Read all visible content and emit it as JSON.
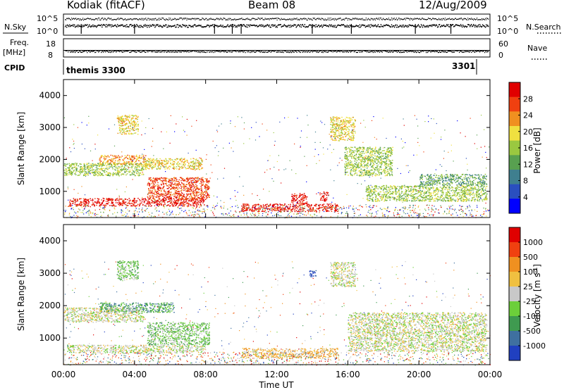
{
  "chart_data": {
    "type": "heatmap",
    "title": "Kodiak (fitACF)",
    "beam": "Beam 08",
    "date": "12/Aug/2009",
    "status_panels": {
      "left_labels": [
        "N.Sky",
        "Freq.",
        "[MHz]",
        "CPID"
      ],
      "right_labels": [
        "N.Search",
        "Nave"
      ],
      "noise_ticks_left": [
        "10^5",
        "10^0"
      ],
      "noise_ticks_right": [
        "10^5",
        "10^0"
      ],
      "freq_ticks": [
        "18",
        "8"
      ],
      "nave_ticks": [
        "60",
        "0"
      ],
      "cpid_labels": [
        "themis 3300",
        "3301"
      ]
    },
    "x_axis": {
      "label": "Time UT",
      "ticks": [
        "00:00",
        "04:00",
        "08:00",
        "12:00",
        "16:00",
        "20:00",
        "00:00"
      ],
      "range_hours": [
        0,
        24
      ]
    },
    "y_axis": {
      "label": "Slant Range [km]",
      "ticks": [
        "1000",
        "2000",
        "3000",
        "4000"
      ],
      "range_km": [
        180,
        4500
      ]
    },
    "panels": [
      {
        "name": "power",
        "colorbar_label": "Power [dB]",
        "colorbar_ticks": [
          "28",
          "24",
          "20",
          "16",
          "12",
          "8",
          "4"
        ],
        "colors": [
          "#0000ff",
          "#2a4fbf",
          "#3f7f8f",
          "#58a050",
          "#9ac840",
          "#f0e040",
          "#f09020",
          "#f04010",
          "#e00000"
        ],
        "blobs": [
          {
            "t0": 0.3,
            "t1": 7.9,
            "r0": 550,
            "r1": 800,
            "level": 8
          },
          {
            "t0": 4.7,
            "t1": 8.2,
            "r0": 750,
            "r1": 1450,
            "level": 7
          },
          {
            "t0": 2.0,
            "t1": 4.6,
            "r0": 1850,
            "r1": 2150,
            "level": 6
          },
          {
            "t0": 4.5,
            "t1": 7.8,
            "r0": 1700,
            "r1": 2050,
            "level": 5
          },
          {
            "t0": 0.0,
            "t1": 4.5,
            "r0": 1500,
            "r1": 1900,
            "level": 4
          },
          {
            "t0": 3.0,
            "t1": 4.2,
            "r0": 2800,
            "r1": 3400,
            "level": 5
          },
          {
            "t0": 10.0,
            "t1": 15.4,
            "r0": 380,
            "r1": 620,
            "level": 8
          },
          {
            "t0": 12.8,
            "t1": 13.7,
            "r0": 620,
            "r1": 950,
            "level": 8
          },
          {
            "t0": 14.4,
            "t1": 14.9,
            "r0": 700,
            "r1": 1000,
            "level": 8
          },
          {
            "t0": 15.0,
            "t1": 16.4,
            "r0": 2600,
            "r1": 3350,
            "level": 5
          },
          {
            "t0": 15.8,
            "t1": 18.5,
            "r0": 1500,
            "r1": 2400,
            "level": 4
          },
          {
            "t0": 17.0,
            "t1": 23.8,
            "r0": 700,
            "r1": 1200,
            "level": 4
          },
          {
            "t0": 20.0,
            "t1": 23.8,
            "r0": 1200,
            "r1": 1550,
            "level": 3
          }
        ]
      },
      {
        "name": "velocity",
        "colorbar_label": "Velocity [m s^-1]",
        "colorbar_ticks": [
          "1000",
          "500",
          "100",
          "25",
          "-25",
          "-100",
          "-500",
          "-1000"
        ],
        "colors": [
          "#2040c0",
          "#3f70a0",
          "#3f9a50",
          "#6ccf3a",
          "#c8c8c8",
          "#f0c040",
          "#f09020",
          "#f04010",
          "#e00000"
        ],
        "blobs": [
          {
            "t0": 0.2,
            "t1": 8.0,
            "r0": 550,
            "r1": 800,
            "level": 4
          },
          {
            "t0": 4.7,
            "t1": 8.2,
            "r0": 800,
            "r1": 1500,
            "level": 3
          },
          {
            "t0": 2.0,
            "t1": 6.2,
            "r0": 1800,
            "r1": 2100,
            "level": 2
          },
          {
            "t0": 0.0,
            "t1": 4.5,
            "r0": 1500,
            "r1": 1950,
            "level": 4
          },
          {
            "t0": 3.0,
            "t1": 4.2,
            "r0": 2800,
            "r1": 3400,
            "level": 3
          },
          {
            "t0": 10.0,
            "t1": 15.4,
            "r0": 380,
            "r1": 700,
            "level": 5
          },
          {
            "t0": 15.0,
            "t1": 16.4,
            "r0": 2600,
            "r1": 3350,
            "level": 4
          },
          {
            "t0": 16.0,
            "t1": 23.8,
            "r0": 600,
            "r1": 1800,
            "level": 4
          },
          {
            "t0": 13.8,
            "t1": 14.2,
            "r0": 2900,
            "r1": 3100,
            "level": 0
          }
        ]
      }
    ]
  }
}
